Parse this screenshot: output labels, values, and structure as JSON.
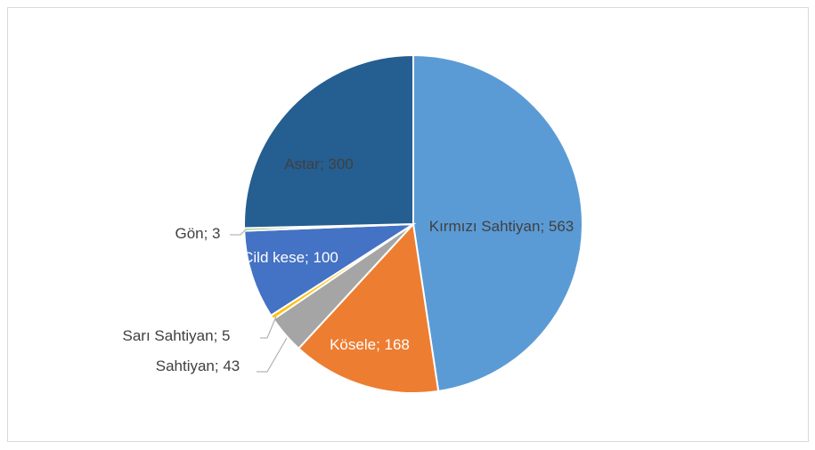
{
  "chart_data": {
    "type": "pie",
    "values": [
      563,
      168,
      43,
      5,
      100,
      3,
      300
    ],
    "value_labels": [
      "Kırmızı Sahtiyan; 563",
      "Kösele; 168",
      "Sahtiyan; 43",
      "Sarı Sahtiyan; 5",
      "Cild kese; 100",
      "Gön; 3",
      "Astar; 300"
    ],
    "colors": [
      "#5b9bd5",
      "#ed7d31",
      "#a5a5a5",
      "#ffc000",
      "#4472c4",
      "#70ad47",
      "#255e91"
    ]
  }
}
